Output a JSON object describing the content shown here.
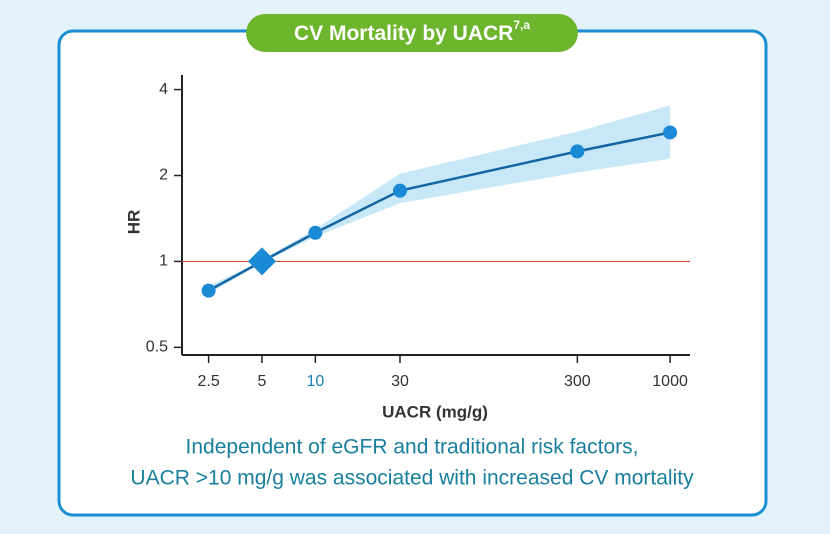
{
  "chart_data": {
    "type": "line",
    "title": "CV Mortality by UACR",
    "title_superscript": "7,a",
    "x_label": "UACR (mg/g)",
    "y_label": "HR",
    "caption": [
      "Independent of eGFR and traditional risk factors,",
      "UACR >10 mg/g was associated with increased CV mortality"
    ],
    "x": [
      2.5,
      5,
      10,
      30,
      300,
      1000
    ],
    "series": [
      {
        "color": "#1565a3",
        "marker_color": "#1a8ad4",
        "band_color": "#c8e8f8",
        "values": [
          0.79,
          1,
          1.26,
          1.77,
          2.43,
          2.83
        ],
        "lower": [
          0.77,
          0.99,
          1.22,
          1.6,
          2.05,
          2.29
        ],
        "upper": [
          0.82,
          1.01,
          1.3,
          2.03,
          2.85,
          3.52
        ],
        "markers": [
          "circle",
          "diamond",
          "circle",
          "circle",
          "circle",
          "circle"
        ]
      }
    ],
    "reference_line": 1,
    "reference_color": "#d9443a",
    "xscale": "log",
    "yscale": "log",
    "xlim": [
      1.77,
      1295
    ],
    "ylim": [
      0.47,
      4.5
    ],
    "xticks": [
      2.5,
      5,
      10,
      30,
      300,
      1000
    ],
    "yticks": [
      0.5,
      1,
      2,
      4
    ],
    "highlighted_xtick": 10,
    "highlight_color": "#1a7fb5"
  }
}
